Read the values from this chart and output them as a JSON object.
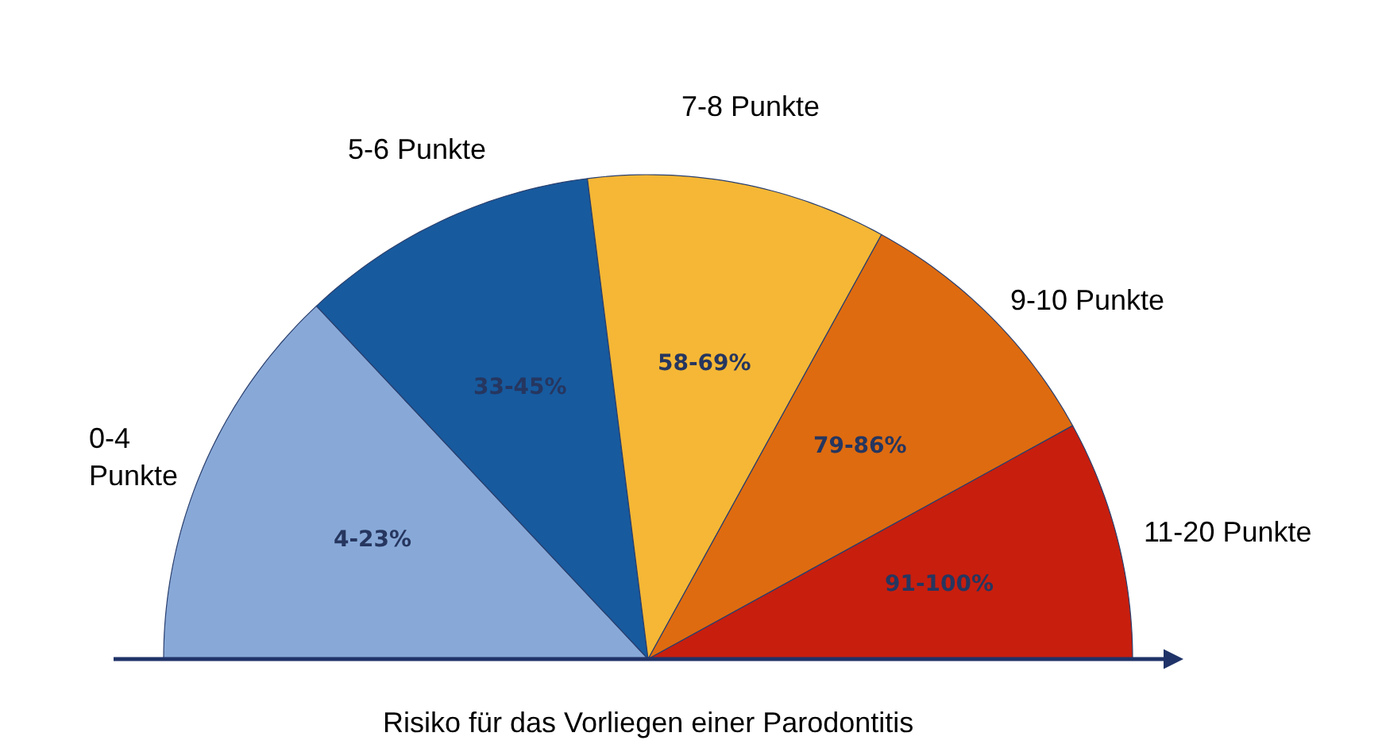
{
  "chart_data": {
    "type": "pie",
    "categories": [
      "0-4 Punkte",
      "5-6 Punkte",
      "7-8 Punkte",
      "9-10 Punkte",
      "11-20 Punkte"
    ],
    "values": [
      26,
      20,
      20,
      18,
      16
    ],
    "colors": [
      "#88a9d8",
      "#175a9e",
      "#f5b735",
      "#de6b10",
      "#c81e0e"
    ],
    "annotations": [
      "4-23%",
      "33-45%",
      "58-69%",
      "79-86%",
      "91-100%"
    ],
    "xlabel": "Risiko für das Vorliegen einer Parodontitis"
  }
}
